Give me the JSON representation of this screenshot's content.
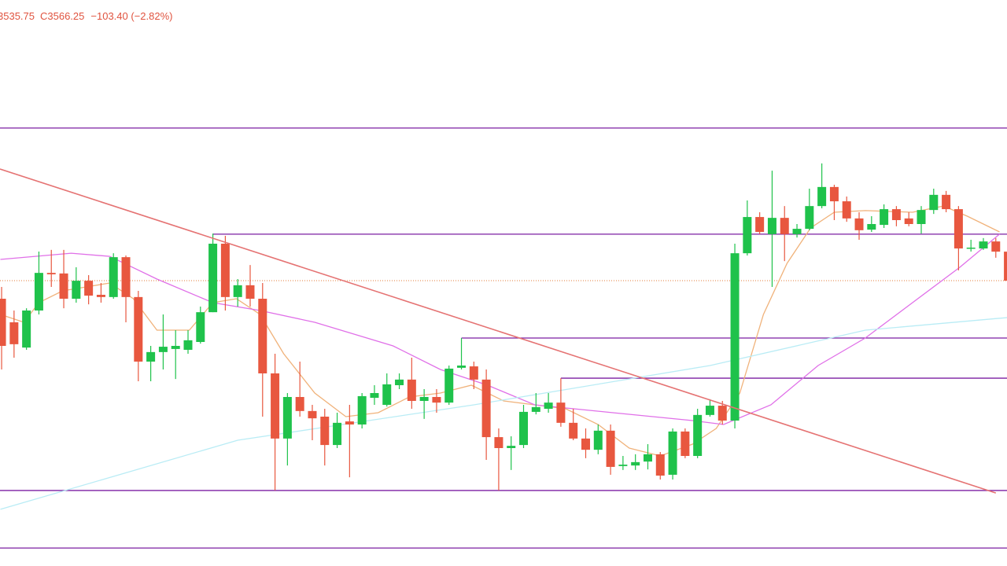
{
  "header": {
    "close_label": "C",
    "change": "−103.40 (−2.82%)"
  },
  "chart_data": {
    "type": "candlestick",
    "xlim": [
      -0.13,
      80.9
    ],
    "ylim": [
      2550,
      4566
    ],
    "up_color": "#1fc24b",
    "down_color": "#e8573f",
    "open": [
      3502,
      3418,
      3328,
      3460,
      3594,
      3592,
      3502,
      3566,
      3516,
      3508,
      3650,
      3508,
      3278,
      3312,
      3323,
      3320,
      3348,
      3454,
      3698,
      3508,
      3550,
      3502,
      3236,
      3004,
      3152,
      3102,
      3082,
      2981,
      3065,
      3054,
      3149,
      3124,
      3194,
      3214,
      3138,
      3152,
      3132,
      3256,
      3261,
      3214,
      3009,
      2970,
      2981,
      3099,
      3110,
      3132,
      3060,
      3004,
      2964,
      3032,
      2906,
      2908,
      2922,
      2948,
      2875,
      3029,
      2942,
      3088,
      3121,
      3068,
      3664,
      3793,
      3732,
      3790,
      3732,
      3751,
      3832,
      3900,
      3849,
      3788,
      3748,
      3765,
      3821,
      3788,
      3768,
      3818,
      3872,
      3821,
      3681,
      3681,
      3706,
      3669.65
    ],
    "high": [
      3544,
      3460,
      3468,
      3670,
      3676,
      3676,
      3614,
      3586,
      3558,
      3664,
      3656,
      3530,
      3334,
      3446,
      3390,
      3390,
      3474,
      3734,
      3726,
      3572,
      3622,
      3558,
      3306,
      3166,
      3278,
      3124,
      3110,
      3096,
      3124,
      3166,
      3194,
      3236,
      3236,
      3292,
      3180,
      3180,
      3264,
      3362,
      3278,
      3250,
      3040,
      3012,
      3124,
      3166,
      3166,
      3219,
      3110,
      3040,
      3054,
      3054,
      2942,
      2948,
      2984,
      2956,
      3040,
      3040,
      3110,
      3144,
      3138,
      3698,
      3852,
      3810,
      3958,
      3832,
      3768,
      3894,
      3984,
      3908,
      3866,
      3810,
      3796,
      3838,
      3832,
      3810,
      3832,
      3894,
      3886,
      3832,
      3712,
      3718,
      3718,
      3669.65
    ],
    "low": [
      3250,
      3292,
      3320,
      3446,
      3544,
      3468,
      3488,
      3482,
      3488,
      3502,
      3418,
      3208,
      3208,
      3250,
      3216,
      3306,
      3342,
      3454,
      3460,
      3474,
      3474,
      3082,
      2819,
      2908,
      3082,
      2998,
      2908,
      2970,
      2866,
      3040,
      3124,
      3118,
      3180,
      3110,
      3074,
      3096,
      3124,
      3250,
      3180,
      2928,
      2819,
      2892,
      2970,
      3090,
      3096,
      3046,
      2998,
      2934,
      2948,
      2875,
      2892,
      2892,
      2894,
      2858,
      2858,
      2934,
      2934,
      3082,
      3054,
      3040,
      3656,
      3732,
      3544,
      3636,
      3720,
      3746,
      3824,
      3782,
      3776,
      3712,
      3740,
      3754,
      3760,
      3760,
      3734,
      3804,
      3810,
      3603,
      3670,
      3676,
      3648,
      3535.75
    ],
    "close": [
      3334,
      3340,
      3460,
      3594,
      3589,
      3502,
      3566,
      3513,
      3508,
      3650,
      3508,
      3278,
      3312,
      3331,
      3334,
      3354,
      3454,
      3698,
      3508,
      3550,
      3502,
      3236,
      3004,
      3152,
      3102,
      3076,
      2981,
      3060,
      3054,
      3155,
      3166,
      3197,
      3214,
      3138,
      3152,
      3132,
      3253,
      3264,
      3214,
      3009,
      2970,
      2978,
      3099,
      3116,
      3132,
      3060,
      3004,
      2964,
      3032,
      2903,
      2911,
      2920,
      2948,
      2872,
      3029,
      2942,
      3088,
      3121,
      3068,
      3664,
      3793,
      3740,
      3790,
      3732,
      3751,
      3832,
      3900,
      3849,
      3788,
      3746,
      3768,
      3821,
      3782,
      3768,
      3818,
      3872,
      3821,
      3681,
      3684,
      3706,
      3669.65,
      3566.25
    ],
    "moving_averages": [
      {
        "color": "#f0b27a",
        "x": [
          -0.1,
          1.8,
          3,
          4.9,
          6.8,
          8.7,
          10.6,
          12.5,
          15.1,
          17,
          18.9,
          20.8,
          22.7,
          25.2,
          27.7,
          30.3,
          32.8,
          35.3,
          37.8,
          40.4,
          42.9,
          45.4,
          48,
          50.5,
          53,
          55.6,
          57.5,
          59.4,
          61.3,
          63.2,
          65.1,
          67,
          69.5,
          73.3,
          75.8,
          77.7,
          80.3
        ],
        "values": [
          3446,
          3418,
          3488,
          3530,
          3544,
          3558,
          3502,
          3390,
          3390,
          3488,
          3502,
          3446,
          3306,
          3166,
          3082,
          3096,
          3152,
          3166,
          3194,
          3138,
          3124,
          3110,
          3054,
          2970,
          2942,
          2984,
          3040,
          3166,
          3446,
          3628,
          3754,
          3810,
          3816,
          3810,
          3832,
          3796,
          3740
        ]
      },
      {
        "color": "#e070e8",
        "x": [
          -0.1,
          5.6,
          8.7,
          12.5,
          17,
          20.8,
          25.2,
          31.5,
          35.3,
          39.1,
          42.9,
          49.2,
          55.6,
          58.1,
          61.9,
          65.7,
          69.5,
          73.3,
          77.1,
          80.3
        ],
        "values": [
          3642,
          3664,
          3653,
          3572,
          3488,
          3460,
          3418,
          3334,
          3250,
          3194,
          3124,
          3096,
          3068,
          3054,
          3124,
          3264,
          3362,
          3488,
          3614,
          3732
        ]
      },
      {
        "color": "#b9ecf5",
        "x": [
          -0.1,
          19,
          38,
          57,
          69.5,
          81
        ],
        "values": [
          2752,
          2998,
          3124,
          3264,
          3390,
          3435
        ]
      }
    ],
    "levels": [
      {
        "value": 4110,
        "from": -0.13
      },
      {
        "value": 3732,
        "from": 17
      },
      {
        "value": 3362,
        "from": 37
      },
      {
        "value": 3219,
        "from": 45
      },
      {
        "value": 2819,
        "from": -0.13
      },
      {
        "value": 2614,
        "from": -0.13
      }
    ],
    "level_color": "#7b1fa2",
    "trendline": {
      "color": "#e57373",
      "x": [
        -0.13,
        80
      ],
      "values": [
        3964,
        2810
      ]
    },
    "last_price_line": true,
    "last_price_color": "#e07b39"
  }
}
